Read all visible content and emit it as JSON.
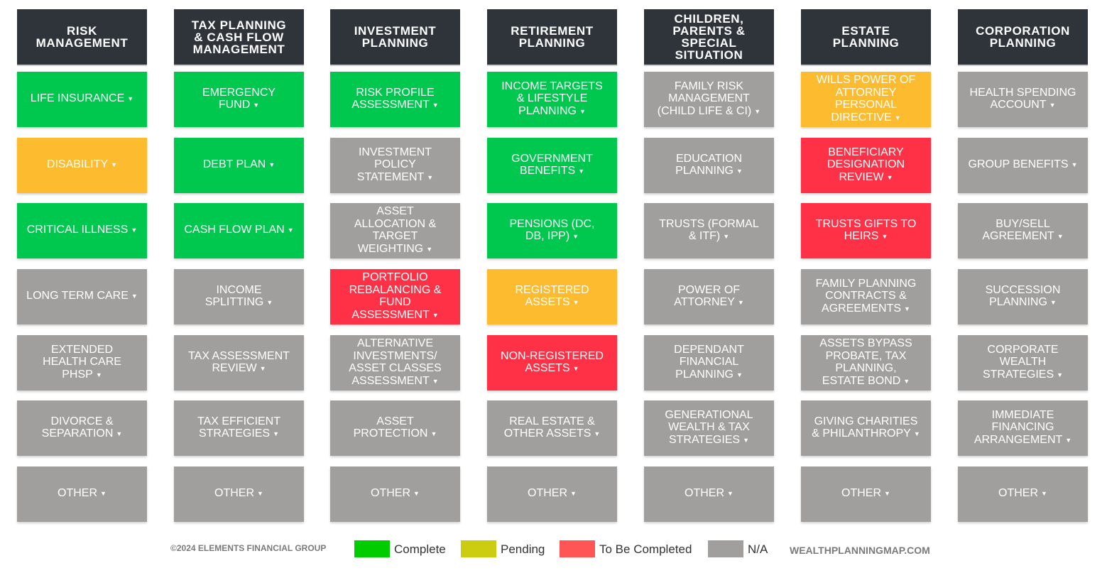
{
  "colors": {
    "complete": "#00c84f",
    "pending": "#fdbb2f",
    "to_be_completed": "#ff3146",
    "na": "#a09f9d",
    "header_bg": "#2f343b"
  },
  "columns": [
    {
      "title": "RISK\nMANAGEMENT",
      "items": [
        {
          "label": "LIFE INSURANCE",
          "status": "complete"
        },
        {
          "label": "DISABILITY",
          "status": "pending"
        },
        {
          "label": "CRITICAL ILLNESS",
          "status": "complete"
        },
        {
          "label": "LONG TERM CARE",
          "status": "na"
        },
        {
          "label": "EXTENDED\nHEALTH CARE\nPHSP",
          "status": "na"
        },
        {
          "label": "DIVORCE &\nSEPARATION",
          "status": "na"
        },
        {
          "label": "OTHER",
          "status": "na"
        }
      ]
    },
    {
      "title": "TAX PLANNING\n& CASH FLOW\nMANAGEMENT",
      "items": [
        {
          "label": "EMERGENCY\nFUND",
          "status": "complete"
        },
        {
          "label": "DEBT PLAN",
          "status": "complete"
        },
        {
          "label": "CASH FLOW PLAN",
          "status": "complete"
        },
        {
          "label": "INCOME\nSPLITTING",
          "status": "na"
        },
        {
          "label": "TAX ASSESSMENT\nREVIEW",
          "status": "na"
        },
        {
          "label": "TAX EFFICIENT\nSTRATEGIES",
          "status": "na"
        },
        {
          "label": "OTHER",
          "status": "na"
        }
      ]
    },
    {
      "title": "INVESTMENT\nPLANNING",
      "items": [
        {
          "label": "RISK PROFILE\nASSESSMENT",
          "status": "complete"
        },
        {
          "label": "INVESTMENT\nPOLICY\nSTATEMENT",
          "status": "na"
        },
        {
          "label": "ASSET\nALLOCATION &\nTARGET\nWEIGHTING",
          "status": "na"
        },
        {
          "label": "PORTFOLIO\nREBALANCING &\nFUND\nASSESSMENT",
          "status": "to_be_completed"
        },
        {
          "label": "ALTERNATIVE\nINVESTMENTS/\nASSET CLASSES\nASSESSMENT",
          "status": "na"
        },
        {
          "label": "ASSET\nPROTECTION",
          "status": "na"
        },
        {
          "label": "OTHER",
          "status": "na"
        }
      ]
    },
    {
      "title": "RETIREMENT\nPLANNING",
      "items": [
        {
          "label": "INCOME TARGETS\n& LIFESTYLE\nPLANNING",
          "status": "complete"
        },
        {
          "label": "GOVERNMENT\nBENEFITS",
          "status": "complete"
        },
        {
          "label": "PENSIONS (DC,\nDB, IPP)",
          "status": "complete"
        },
        {
          "label": "REGISTERED\nASSETS",
          "status": "pending"
        },
        {
          "label": "NON-REGISTERED\nASSETS",
          "status": "to_be_completed"
        },
        {
          "label": "REAL ESTATE &\nOTHER ASSETS",
          "status": "na"
        },
        {
          "label": "OTHER",
          "status": "na"
        }
      ]
    },
    {
      "title": "CHILDREN,\nPARENTS &\nSPECIAL\nSITUATION",
      "items": [
        {
          "label": "FAMILY RISK\nMANAGEMENT\n(CHILD LIFE & CI)",
          "status": "na"
        },
        {
          "label": "EDUCATION\nPLANNING",
          "status": "na"
        },
        {
          "label": "TRUSTS (FORMAL\n& ITF)",
          "status": "na"
        },
        {
          "label": "POWER OF\nATTORNEY",
          "status": "na"
        },
        {
          "label": "DEPENDANT\nFINANCIAL\nPLANNING",
          "status": "na"
        },
        {
          "label": "GENERATIONAL\nWEALTH & TAX\nSTRATEGIES",
          "status": "na"
        },
        {
          "label": "OTHER",
          "status": "na"
        }
      ]
    },
    {
      "title": "ESTATE\nPLANNING",
      "items": [
        {
          "label": "WILLS POWER OF\nATTORNEY\nPERSONAL\nDIRECTIVE",
          "status": "pending"
        },
        {
          "label": "BENEFICIARY\nDESIGNATION\nREVIEW",
          "status": "to_be_completed"
        },
        {
          "label": "TRUSTS GIFTS TO\nHEIRS",
          "status": "to_be_completed"
        },
        {
          "label": "FAMILY PLANNING\nCONTRACTS &\nAGREEMENTS",
          "status": "na"
        },
        {
          "label": "ASSETS BYPASS\nPROBATE, TAX\nPLANNING,\nESTATE BOND",
          "status": "na"
        },
        {
          "label": "GIVING CHARITIES\n& PHILANTHROPY",
          "status": "na"
        },
        {
          "label": "OTHER",
          "status": "na"
        }
      ]
    },
    {
      "title": "CORPORATION\nPLANNING",
      "items": [
        {
          "label": "HEALTH SPENDING\nACCOUNT",
          "status": "na"
        },
        {
          "label": "GROUP BENEFITS",
          "status": "na"
        },
        {
          "label": "BUY/SELL\nAGREEMENT",
          "status": "na"
        },
        {
          "label": "SUCCESSION\nPLANNING",
          "status": "na"
        },
        {
          "label": "CORPORATE\nWEALTH\nSTRATEGIES",
          "status": "na"
        },
        {
          "label": "IMMEDIATE\nFINANCING\nARRANGEMENT",
          "status": "na"
        },
        {
          "label": "OTHER",
          "status": "na"
        }
      ]
    }
  ],
  "footer": {
    "copyright": "©2024 ELEMENTS FINANCIAL GROUP",
    "legend": [
      {
        "label": "Complete",
        "color": "#00cc00"
      },
      {
        "label": "Pending",
        "color": "#cccc11"
      },
      {
        "label": "To Be Completed",
        "color": "#ff5555"
      },
      {
        "label": "N/A",
        "color": "#a09f9d"
      }
    ],
    "website": "WEALTHPLANNINGMAP.COM"
  }
}
